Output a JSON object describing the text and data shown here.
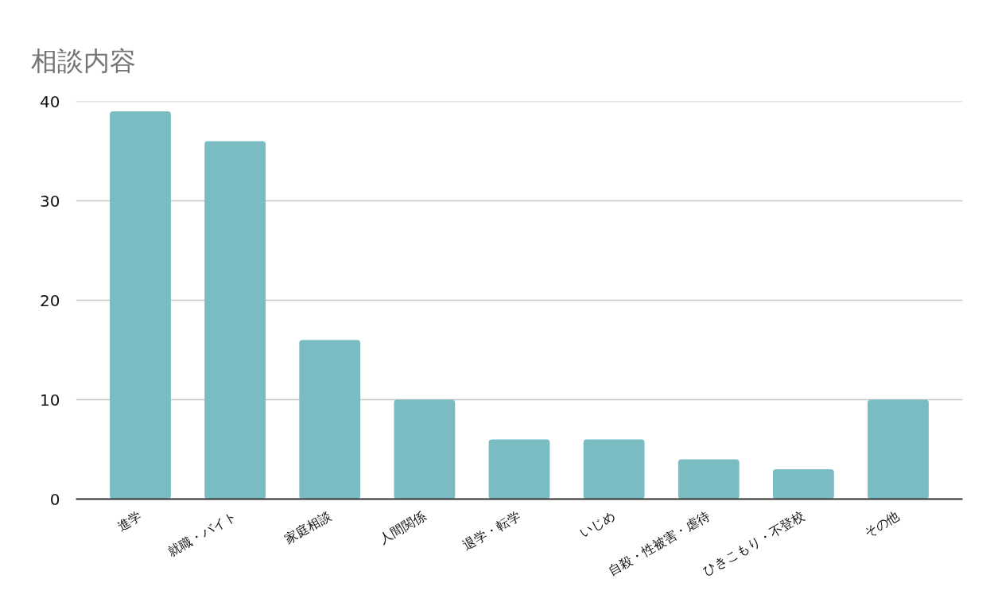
{
  "chart_data": {
    "type": "bar",
    "title": "相談内容",
    "categories": [
      "進学",
      "就職・バイト",
      "家庭相談",
      "人間関係",
      "退学・転学",
      "いじめ",
      "自殺・性被害・虐待",
      "ひきこもり・不登校",
      "その他"
    ],
    "values": [
      39,
      36,
      16,
      10,
      6,
      6,
      4,
      3,
      10
    ],
    "color": "#7bbcc3",
    "ylim": [
      0,
      40
    ],
    "yticks": [
      0,
      10,
      20,
      30,
      40
    ],
    "grid": "y"
  }
}
